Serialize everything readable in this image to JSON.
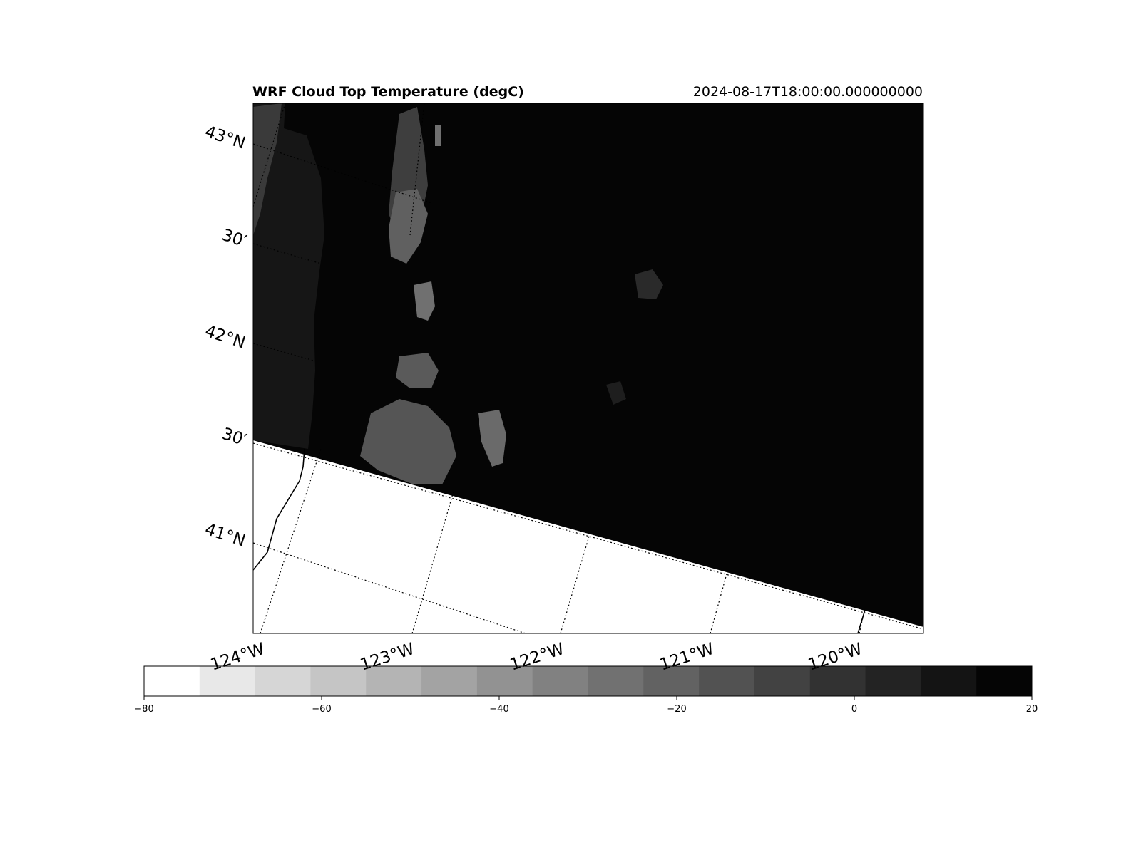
{
  "title": "WRF Cloud Top Temperature (degC)",
  "timestamp": "2024-08-17T18:00:00.000000000",
  "map": {
    "lat_labels": [
      "43°N",
      "30′",
      "42°N",
      "30′",
      "41°N"
    ],
    "lon_labels": [
      "124°W",
      "123°W",
      "122°W",
      "121°W",
      "120°W"
    ],
    "colormap": "greys",
    "missing_region_color": "#ffffff",
    "background_value_color": "#050505"
  },
  "colorbar": {
    "min": -80,
    "max": 20,
    "levels": 16,
    "tick_values": [
      -80,
      -60,
      -40,
      -20,
      0,
      20
    ],
    "tick_labels": [
      "−80",
      "−60",
      "−40",
      "−20",
      "0",
      "20"
    ],
    "colors": [
      "#ffffff",
      "#e8e8e8",
      "#d6d6d6",
      "#c5c5c5",
      "#b4b4b4",
      "#a3a3a3",
      "#929292",
      "#818181",
      "#717171",
      "#626262",
      "#525252",
      "#424242",
      "#323232",
      "#232323",
      "#141414",
      "#050505"
    ]
  }
}
